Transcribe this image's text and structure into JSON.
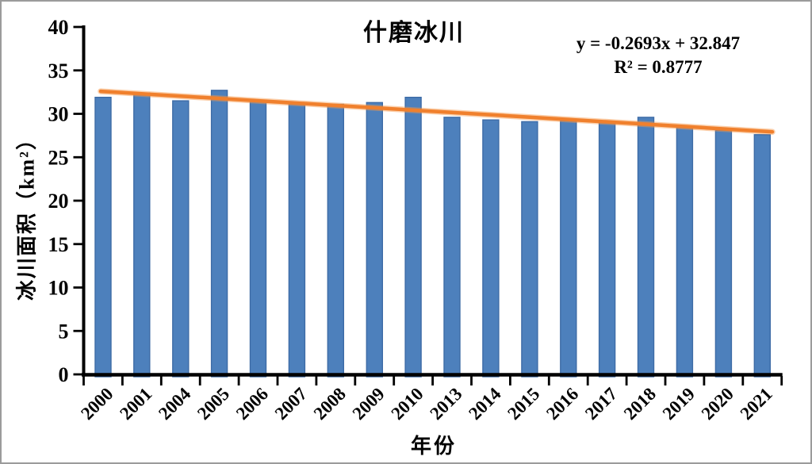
{
  "frame": {
    "background": "#ffffff",
    "border_color": "#9b9b9b"
  },
  "chart_data": {
    "type": "bar",
    "title": "什磨冰川",
    "xlabel": "年份",
    "ylabel": "冰川面积（km²）",
    "categories": [
      "2000",
      "2001",
      "2004",
      "2005",
      "2006",
      "2007",
      "2008",
      "2009",
      "2010",
      "2013",
      "2014",
      "2015",
      "2016",
      "2017",
      "2018",
      "2019",
      "2020",
      "2021"
    ],
    "values": [
      31.9,
      32.4,
      31.5,
      32.7,
      31.5,
      31.2,
      31.1,
      31.3,
      31.9,
      29.6,
      29.3,
      29.1,
      29.2,
      29.0,
      29.6,
      28.5,
      28.1,
      27.6
    ],
    "ylim": [
      0,
      40
    ],
    "ytick_step": 5,
    "grid": false,
    "legend": "none",
    "bar_color": "#4D80BC",
    "bar_border_color": "#3D6BA6",
    "axis_color": "#000000",
    "trendline": {
      "slope": -0.2693,
      "intercept": 32.847,
      "r_squared": 0.8777,
      "equation_text": "y = -0.2693x + 32.847",
      "r2_text": "R² = 0.8777",
      "color": "#F0802D",
      "halo_color": "#F79646"
    }
  }
}
